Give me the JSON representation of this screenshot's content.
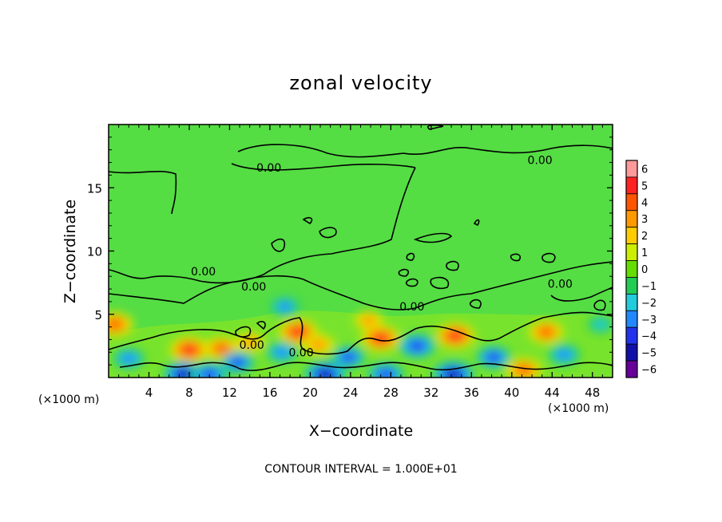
{
  "chart_data": {
    "type": "heatmap",
    "title": "zonal velocity",
    "xlabel": "X−coordinate",
    "ylabel": "Z−coordinate",
    "x_unit_left": "(×1000 m)",
    "x_unit_right": "(×1000 m)",
    "footer": "CONTOUR INTERVAL = 1.000E+01",
    "xlim": [
      0,
      50
    ],
    "ylim": [
      0,
      20
    ],
    "x_ticks": [
      4,
      8,
      12,
      16,
      20,
      24,
      28,
      32,
      36,
      40,
      44,
      48
    ],
    "x_tick_labels": [
      "4",
      "8",
      "12",
      "16",
      "20",
      "24",
      "28",
      "32",
      "36",
      "40",
      "44",
      "48"
    ],
    "y_ticks": [
      5,
      10,
      15
    ],
    "y_tick_labels": [
      "5",
      "10",
      "15"
    ],
    "colorbar": {
      "levels": [
        6,
        5,
        4,
        3,
        2,
        1,
        0,
        -1,
        -2,
        -3,
        -4,
        -5,
        -6
      ],
      "labels": [
        "6",
        "5",
        "4",
        "3",
        "2",
        "1",
        "0",
        "−1",
        "−2",
        "−3",
        "−4",
        "−5",
        "−6"
      ],
      "colors": [
        "#ff9a9a",
        "#ff2222",
        "#ff5500",
        "#ff9900",
        "#ffcc00",
        "#ccee00",
        "#66dd00",
        "#22cc55",
        "#22ccdd",
        "#2288ff",
        "#2233ee",
        "#1111aa",
        "#660099"
      ]
    },
    "contour_labels": [
      {
        "text": "0.00",
        "x": 15.9,
        "y": 16.6
      },
      {
        "text": "0.00",
        "x": 42.8,
        "y": 17.2
      },
      {
        "text": "0.00",
        "x": 9.4,
        "y": 8.4
      },
      {
        "text": "0.00",
        "x": 14.4,
        "y": 7.2
      },
      {
        "text": "0.00",
        "x": 30.1,
        "y": 5.6
      },
      {
        "text": "0.00",
        "x": 44.8,
        "y": 7.4
      },
      {
        "text": "0.00",
        "x": 14.2,
        "y": 2.6
      },
      {
        "text": "0.00",
        "x": 19.1,
        "y": 2.0
      }
    ],
    "blobs": [
      {
        "x": 0.6,
        "y": 4.2,
        "v": 4.2
      },
      {
        "x": 8.0,
        "y": 2.2,
        "v": 4.6
      },
      {
        "x": 11.2,
        "y": 2.3,
        "v": 3.8
      },
      {
        "x": 14.0,
        "y": 2.8,
        "v": 2.6
      },
      {
        "x": 18.8,
        "y": 3.6,
        "v": 4.6
      },
      {
        "x": 20.8,
        "y": 2.6,
        "v": 3.2
      },
      {
        "x": 27.0,
        "y": 3.1,
        "v": 4.6
      },
      {
        "x": 34.4,
        "y": 3.3,
        "v": 4.6
      },
      {
        "x": 43.4,
        "y": 3.6,
        "v": 3.8
      },
      {
        "x": 41.2,
        "y": 0.6,
        "v": 4.0
      },
      {
        "x": 25.8,
        "y": 4.5,
        "v": 2.5
      },
      {
        "x": 2.0,
        "y": 1.5,
        "v": -3.2
      },
      {
        "x": 12.8,
        "y": 1.2,
        "v": -3.6
      },
      {
        "x": 17.2,
        "y": 2.0,
        "v": -3.2
      },
      {
        "x": 23.8,
        "y": 1.6,
        "v": -3.6
      },
      {
        "x": 30.6,
        "y": 2.5,
        "v": -4.4
      },
      {
        "x": 38.2,
        "y": 1.6,
        "v": -3.8
      },
      {
        "x": 45.2,
        "y": 1.8,
        "v": -3.2
      },
      {
        "x": 17.5,
        "y": 5.6,
        "v": -2.6
      },
      {
        "x": 48.8,
        "y": 4.2,
        "v": -2.0
      },
      {
        "x": 7.5,
        "y": 0.25,
        "v": -5.2
      },
      {
        "x": 21.5,
        "y": 0.25,
        "v": -5.2
      },
      {
        "x": 34.2,
        "y": 0.25,
        "v": -5.2
      },
      {
        "x": 10.0,
        "y": 0.25,
        "v": -4.2
      },
      {
        "x": 27.5,
        "y": 0.25,
        "v": -4.2
      }
    ]
  }
}
